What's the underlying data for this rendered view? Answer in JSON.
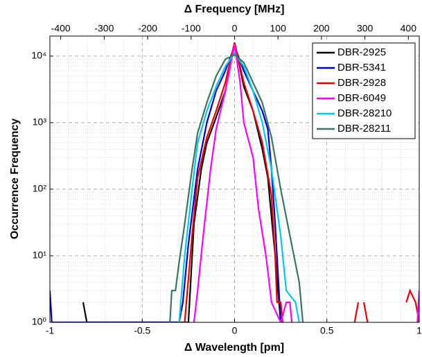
{
  "chart_data": {
    "type": "line",
    "x_label": "Δ Wavelength [pm]",
    "y_label": "Occurrence Frequency",
    "x2_label": "Δ Frequency [MHz]",
    "xlim": [
      -1,
      1
    ],
    "xticks": [
      -1,
      -0.5,
      0,
      0.5,
      1
    ],
    "x2lim": [
      -425,
      425
    ],
    "x2ticks": [
      -400,
      -300,
      -200,
      -100,
      0,
      100,
      200,
      300,
      400
    ],
    "ylim": [
      1,
      20000
    ],
    "log_y": true,
    "yticks": [
      {
        "value": 1,
        "label": "10⁰"
      },
      {
        "value": 10,
        "label": "10¹"
      },
      {
        "value": 100,
        "label": "10²"
      },
      {
        "value": 1000,
        "label": "10³"
      },
      {
        "value": 10000,
        "label": "10⁴"
      }
    ],
    "grid": true,
    "legend": "upper right",
    "series": [
      {
        "name": "DBR-2925",
        "color": "#000000",
        "x": [
          -0.82,
          -0.8,
          -0.25,
          -0.22,
          -0.18,
          -0.15,
          -0.1,
          -0.05,
          -0.02,
          0,
          0.02,
          0.05,
          0.1,
          0.15,
          0.18,
          0.22,
          0.25
        ],
        "values": [
          2,
          1,
          1,
          30,
          200,
          500,
          1200,
          3000,
          8000,
          15000,
          9000,
          3500,
          1500,
          400,
          150,
          10,
          1
        ]
      },
      {
        "name": "DBR-5341",
        "color": "#0000cc",
        "x": [
          -1,
          -0.99,
          -0.3,
          -0.28,
          -0.25,
          -0.2,
          -0.15,
          -0.1,
          -0.05,
          0,
          0.05,
          0.1,
          0.15,
          0.18,
          0.2,
          0.22,
          0.25
        ],
        "values": [
          3,
          1,
          1,
          2,
          15,
          200,
          1000,
          3000,
          6000,
          14000,
          6000,
          3000,
          1500,
          800,
          200,
          30,
          1
        ]
      },
      {
        "name": "DBR-2928",
        "color": "#ee0000",
        "x": [
          -0.27,
          -0.23,
          -0.2,
          -0.15,
          -0.1,
          -0.05,
          0,
          0.05,
          0.1,
          0.15,
          0.2,
          0.22,
          0.23,
          0.25,
          0.26,
          0.27,
          0.65,
          0.67,
          0.69,
          0.7,
          0.72,
          0.9,
          0.93,
          0.95,
          0.98,
          1
        ],
        "values": [
          1,
          20,
          150,
          600,
          1500,
          4000,
          16000,
          4000,
          1500,
          500,
          80,
          10,
          2,
          2,
          1,
          null,
          1,
          2,
          null,
          2,
          1,
          null,
          2,
          3,
          2,
          1
        ]
      },
      {
        "name": "DBR-6049",
        "color": "#ff00ff",
        "x": [
          -0.22,
          -0.2,
          -0.17,
          -0.13,
          -0.1,
          -0.05,
          0,
          0.03,
          0.05,
          0.1,
          0.13,
          0.17,
          0.2,
          0.25,
          0.28,
          0.3,
          0.31,
          0.5,
          0.99,
          1
        ],
        "values": [
          1,
          3,
          20,
          200,
          800,
          3000,
          15000,
          4000,
          1000,
          300,
          50,
          10,
          2,
          1,
          2,
          2,
          1,
          null,
          1,
          3
        ]
      },
      {
        "name": "DBR-28210",
        "color": "#00c8ee",
        "x": [
          -0.3,
          -0.27,
          -0.23,
          -0.2,
          -0.15,
          -0.1,
          -0.05,
          0,
          0.05,
          0.1,
          0.15,
          0.2,
          0.25,
          0.28,
          0.33,
          0.35
        ],
        "values": [
          1,
          10,
          100,
          500,
          1500,
          3500,
          7000,
          11000,
          7000,
          3000,
          1000,
          200,
          20,
          3,
          2,
          1
        ]
      },
      {
        "name": "DBR-28211",
        "color": "#3a7560",
        "x": [
          -0.35,
          -0.34,
          -0.32,
          -0.3,
          -0.27,
          -0.23,
          -0.2,
          -0.15,
          -0.1,
          -0.05,
          0,
          0.05,
          0.1,
          0.15,
          0.2,
          0.25,
          0.3,
          0.35,
          0.37
        ],
        "values": [
          1,
          3,
          3,
          8,
          30,
          200,
          700,
          2000,
          5000,
          9000,
          10500,
          8000,
          4000,
          2000,
          600,
          100,
          20,
          4,
          1
        ]
      }
    ]
  }
}
